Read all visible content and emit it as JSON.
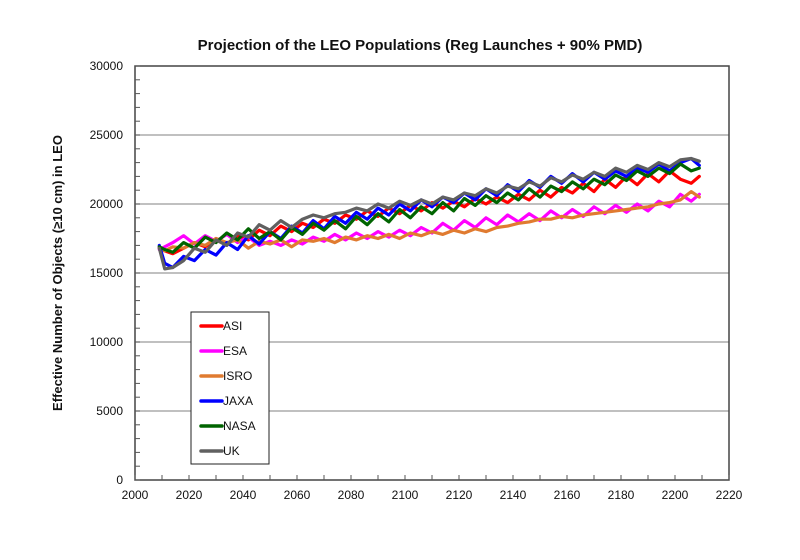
{
  "chart_data": {
    "type": "line",
    "title": "Projection of the LEO Populations (Reg Launches + 90% PMD)",
    "xlabel": "",
    "ylabel": "Effective Number of Objects (≥10 cm) in LEO",
    "xlim": [
      2000,
      2220
    ],
    "ylim": [
      0,
      30000
    ],
    "xticks": [
      2000,
      2020,
      2040,
      2060,
      2080,
      2100,
      2120,
      2140,
      2160,
      2180,
      2200,
      2220
    ],
    "yticks": [
      0,
      5000,
      10000,
      15000,
      20000,
      25000,
      30000
    ],
    "grid": "horizontal",
    "legend_position": "lower-left",
    "x": [
      2009,
      2011,
      2014,
      2018,
      2022,
      2026,
      2030,
      2034,
      2038,
      2042,
      2046,
      2050,
      2054,
      2058,
      2062,
      2066,
      2070,
      2074,
      2078,
      2082,
      2086,
      2090,
      2094,
      2098,
      2102,
      2106,
      2110,
      2114,
      2118,
      2122,
      2126,
      2130,
      2134,
      2138,
      2142,
      2146,
      2150,
      2154,
      2158,
      2162,
      2166,
      2170,
      2174,
      2178,
      2182,
      2186,
      2190,
      2194,
      2198,
      2202,
      2206,
      2209
    ],
    "series": [
      {
        "name": "ASI",
        "color": "#ff0000",
        "values": [
          16800,
          16600,
          16400,
          16800,
          17200,
          16900,
          17500,
          17100,
          17700,
          17400,
          18100,
          17700,
          18400,
          18000,
          18600,
          18300,
          18900,
          18600,
          19200,
          18900,
          19500,
          19100,
          19700,
          19300,
          19900,
          19500,
          20100,
          19700,
          20200,
          19800,
          20400,
          20000,
          20500,
          20100,
          20700,
          20300,
          21000,
          20500,
          21200,
          20800,
          21500,
          20900,
          21800,
          21200,
          22000,
          21400,
          22200,
          21600,
          22400,
          21800,
          21500,
          22000
        ]
      },
      {
        "name": "ESA",
        "color": "#ff00ff",
        "values": [
          16700,
          16900,
          17200,
          17700,
          17100,
          17700,
          17300,
          17800,
          17200,
          17600,
          17000,
          17300,
          17000,
          17400,
          17100,
          17600,
          17300,
          17800,
          17400,
          17900,
          17500,
          18000,
          17600,
          18100,
          17700,
          18300,
          17900,
          18600,
          18100,
          18800,
          18300,
          19000,
          18500,
          19200,
          18700,
          19300,
          18800,
          19500,
          19000,
          19600,
          19100,
          19800,
          19300,
          19900,
          19400,
          20000,
          19500,
          20200,
          19800,
          20700,
          20200,
          20700
        ]
      },
      {
        "name": "ISRO",
        "color": "#e07b30",
        "values": [
          16900,
          16600,
          16900,
          16800,
          17200,
          17000,
          17500,
          17200,
          17400,
          16800,
          17300,
          17100,
          17400,
          16900,
          17400,
          17300,
          17500,
          17200,
          17600,
          17400,
          17700,
          17500,
          17800,
          17500,
          17900,
          17700,
          18000,
          17800,
          18100,
          17900,
          18200,
          18000,
          18300,
          18400,
          18600,
          18700,
          18900,
          18900,
          19100,
          19000,
          19200,
          19300,
          19400,
          19500,
          19600,
          19700,
          19800,
          20000,
          20100,
          20300,
          20900,
          20500
        ]
      },
      {
        "name": "JAXA",
        "color": "#0000ff",
        "values": [
          17000,
          15700,
          15400,
          16200,
          15900,
          16700,
          16300,
          17200,
          16700,
          17700,
          17100,
          18000,
          17500,
          18400,
          17900,
          18800,
          18200,
          19100,
          18600,
          19400,
          18900,
          19700,
          19200,
          20000,
          19500,
          20300,
          19800,
          20500,
          20100,
          20800,
          20300,
          21100,
          20600,
          21400,
          20900,
          21700,
          21200,
          22000,
          21500,
          22200,
          21600,
          22300,
          21800,
          22400,
          22000,
          22600,
          22300,
          22900,
          22400,
          23000,
          23300,
          22800
        ]
      },
      {
        "name": "NASA",
        "color": "#006400",
        "values": [
          16900,
          16700,
          16500,
          17200,
          16800,
          17600,
          17200,
          17900,
          17400,
          18200,
          17500,
          18000,
          17400,
          18300,
          17800,
          18600,
          18100,
          18800,
          18200,
          19100,
          18500,
          19300,
          18700,
          19600,
          19000,
          19800,
          19300,
          20100,
          19500,
          20400,
          19900,
          20600,
          20100,
          20800,
          20300,
          21100,
          20500,
          21300,
          20900,
          21600,
          21100,
          21800,
          21400,
          22100,
          21700,
          22400,
          22000,
          22600,
          22200,
          22900,
          22400,
          22600
        ]
      },
      {
        "name": "UK",
        "color": "#606060",
        "values": [
          16800,
          15300,
          15400,
          15900,
          16800,
          16500,
          17400,
          17000,
          17900,
          17600,
          18500,
          18100,
          18800,
          18300,
          18900,
          19200,
          19000,
          19300,
          19400,
          19700,
          19500,
          20000,
          19700,
          20200,
          19900,
          20300,
          20000,
          20500,
          20300,
          20800,
          20600,
          21100,
          20800,
          21300,
          21100,
          21600,
          21300,
          21900,
          21600,
          22100,
          21800,
          22300,
          22000,
          22600,
          22300,
          22800,
          22500,
          23000,
          22700,
          23200,
          23300,
          23100
        ]
      }
    ]
  }
}
